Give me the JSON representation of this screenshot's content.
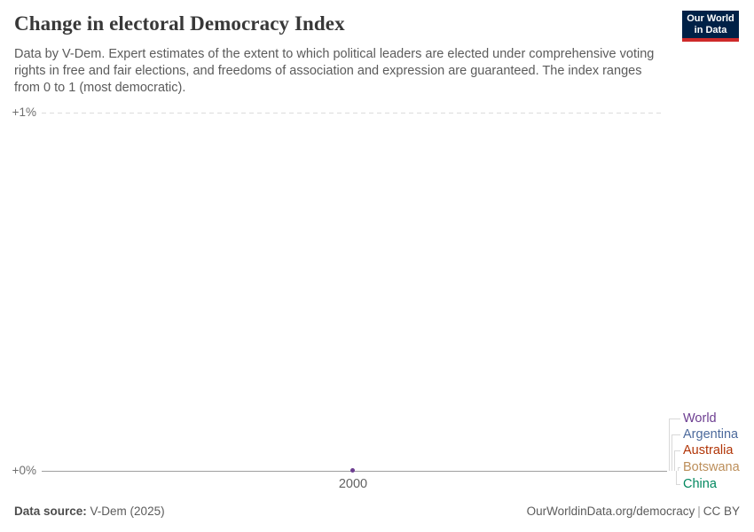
{
  "header": {
    "title": "Change in electoral Democracy Index",
    "subtitle": "Data by V-Dem. Expert estimates of the extent to which political leaders are elected under comprehensive voting rights in free and fair elections, and freedoms of association and expression are guaranteed. The index ranges from 0 to 1 (most democratic).",
    "logo": {
      "line1": "Our World",
      "line2": "in Data",
      "bg_color": "#002147",
      "stripe_color": "#ce2a2a"
    }
  },
  "chart_data": {
    "type": "line",
    "title": "Change in electoral Democracy Index",
    "x": [
      2000
    ],
    "x_tick_labels": [
      "2000"
    ],
    "y_axis": {
      "top_tick": "+1%",
      "bottom_tick": "+0%",
      "unit": "relative change (%)",
      "range_percent": [
        0,
        1
      ]
    },
    "series": [
      {
        "name": "World",
        "values": [
          0
        ],
        "color": "#6D3E91"
      },
      {
        "name": "Argentina",
        "values": [
          0
        ],
        "color": "#4C6A9C"
      },
      {
        "name": "Australia",
        "values": [
          0
        ],
        "color": "#B13507"
      },
      {
        "name": "Botswana",
        "values": [
          0
        ],
        "color": "#BC8E5A"
      },
      {
        "name": "China",
        "values": [
          0
        ],
        "color": "#00875E"
      }
    ],
    "grid": "single dashed horizontal gridline at +1%, solid baseline at +0%",
    "legend_position": "right"
  },
  "footer": {
    "source_label": "Data source:",
    "source_value": "V-Dem (2025)",
    "link": "OurWorldinData.org/democracy",
    "separator": "|",
    "license": "CC BY"
  }
}
